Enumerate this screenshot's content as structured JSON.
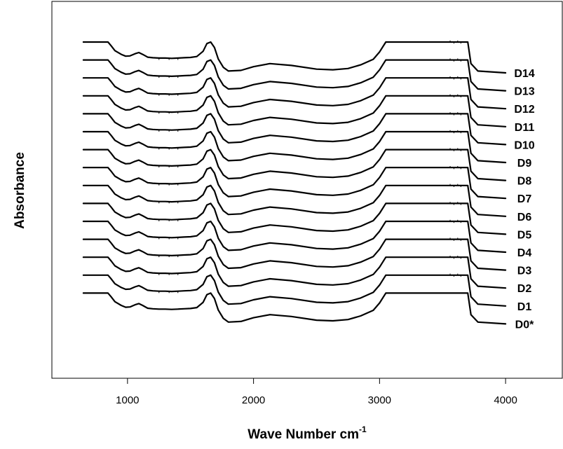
{
  "chart_data": {
    "type": "line",
    "title": "",
    "xlabel": "Wave Number cm",
    "xlabel_superscript": "-1",
    "ylabel": "Absorbance",
    "xlim": [
      400,
      4450
    ],
    "xticks": [
      1000,
      2000,
      3000,
      4000
    ],
    "y_tick_labels": false,
    "grid": false,
    "legend": "none",
    "x_extent": [
      650,
      4000
    ],
    "line_color": "#000000",
    "series_labels": [
      "D14",
      "D13",
      "D12",
      "D11",
      "D10",
      "D9",
      "D8",
      "D7",
      "D6",
      "D5",
      "D4",
      "D3",
      "D2",
      "D1",
      "D0*"
    ],
    "series": [
      {
        "name": "D14"
      },
      {
        "name": "D13"
      },
      {
        "name": "D12"
      },
      {
        "name": "D11"
      },
      {
        "name": "D10"
      },
      {
        "name": "D9"
      },
      {
        "name": "D8"
      },
      {
        "name": "D7"
      },
      {
        "name": "D6"
      },
      {
        "name": "D5"
      },
      {
        "name": "D4"
      },
      {
        "name": "D3"
      },
      {
        "name": "D2"
      },
      {
        "name": "D1"
      },
      {
        "name": "D0*"
      }
    ],
    "spectrum_shape_relative_absorbance": {
      "x": [
        650,
        845,
        870,
        900,
        950,
        985,
        1020,
        1060,
        1090,
        1120,
        1160,
        1200,
        1250,
        1300,
        1350,
        1400,
        1450,
        1500,
        1550,
        1600,
        1630,
        1660,
        1690,
        1720,
        1760,
        1800,
        1900,
        2000,
        2130,
        2300,
        2500,
        2630,
        2750,
        2850,
        2950,
        3000,
        3050,
        3700,
        3725,
        3780,
        4000
      ],
      "y": [
        1.0,
        1.0,
        0.88,
        0.72,
        0.6,
        0.54,
        0.55,
        0.62,
        0.66,
        0.6,
        0.51,
        0.49,
        0.48,
        0.48,
        0.47,
        0.48,
        0.49,
        0.5,
        0.53,
        0.7,
        0.95,
        1.0,
        0.82,
        0.45,
        0.18,
        0.06,
        0.08,
        0.2,
        0.3,
        0.24,
        0.12,
        0.1,
        0.14,
        0.26,
        0.44,
        0.68,
        1.0,
        1.0,
        0.3,
        0.06,
        0.0
      ]
    }
  }
}
